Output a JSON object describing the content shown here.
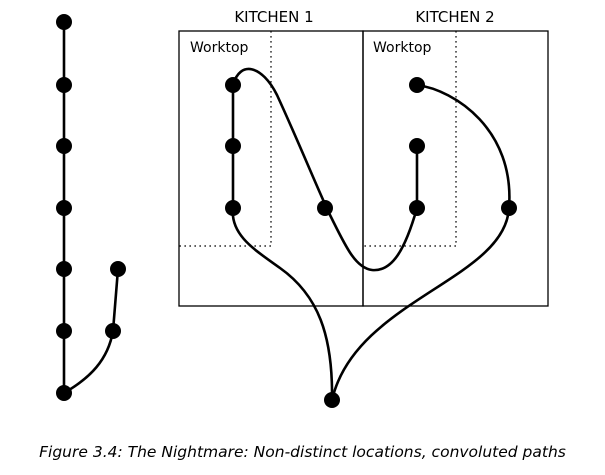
{
  "kitchens": [
    {
      "title": "KITCHEN 1",
      "worktop_label": "Worktop"
    },
    {
      "title": "KITCHEN 2",
      "worktop_label": "Worktop"
    }
  ],
  "caption": "Figure 3.4: The Nightmare: Non-distinct locations, convoluted paths",
  "colors": {
    "ink": "#000000",
    "background": "#ffffff"
  }
}
